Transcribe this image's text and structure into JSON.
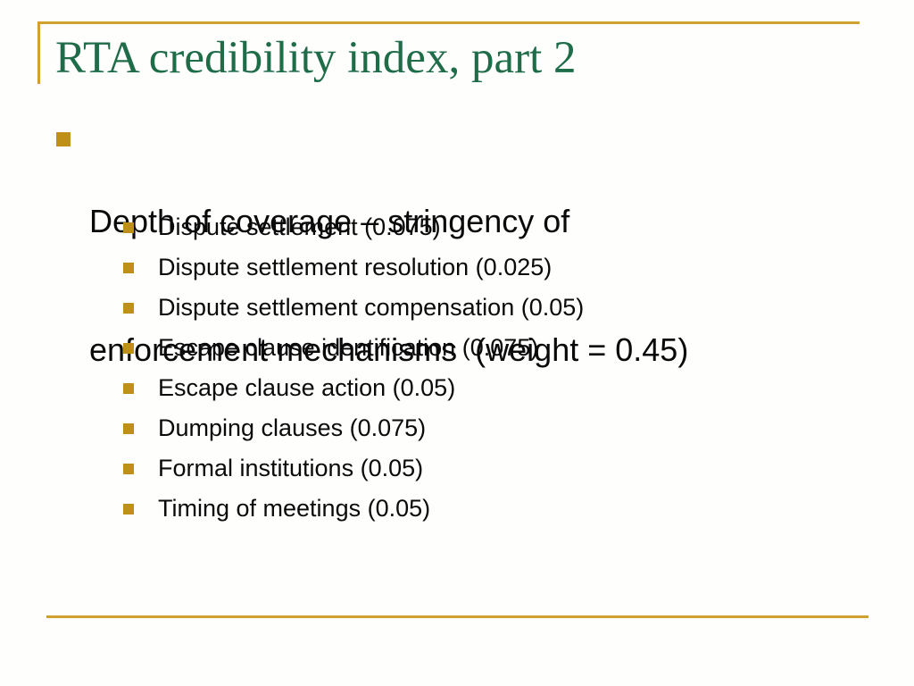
{
  "slide": {
    "title": "RTA credibility index, part 2",
    "bullet": {
      "lines": [
        "Depth of coverage – stringency of",
        "enforcement mechanisms  (weight = 0.45)"
      ]
    },
    "sub_bullets": [
      "Dispute settlement (0.075)",
      "Dispute settlement resolution (0.025)",
      "Dispute settlement compensation (0.05)",
      "Escape clause identification (0.075)",
      "Escape clause action (0.05)",
      "Dumping clauses (0.075)",
      "Formal institutions (0.05)",
      "Timing of meetings (0.05)"
    ],
    "colors": {
      "accent_gold_rule": "#cfa12e",
      "bullet_gold": "#bf9017",
      "title_green": "#1f6c49",
      "body_text": "#0a0a0a",
      "background": "#fefefd"
    }
  }
}
